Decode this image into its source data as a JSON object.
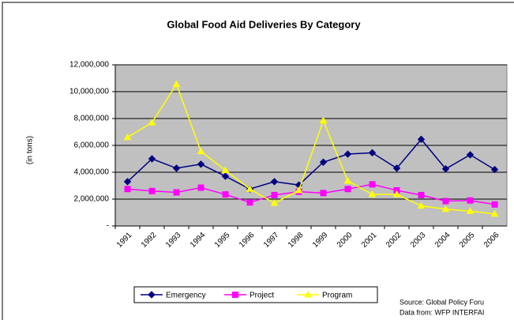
{
  "chart_data": {
    "type": "line",
    "title": "Global Food Aid Deliveries By Category",
    "y_label": "(in tons)",
    "categories": [
      "1991",
      "1992",
      "1993",
      "1994",
      "1995",
      "1996",
      "1997",
      "1998",
      "1999",
      "2000",
      "2001",
      "2002",
      "2003",
      "2004",
      "2005",
      "2006"
    ],
    "series": [
      {
        "name": "Emergency",
        "color": "#000080",
        "marker": "diamond",
        "values": [
          3300000,
          5000000,
          4300000,
          4600000,
          3700000,
          2750000,
          3300000,
          3050000,
          4750000,
          5350000,
          5450000,
          4300000,
          6450000,
          4250000,
          5300000,
          4200000
        ]
      },
      {
        "name": "Project",
        "color": "#ff00ff",
        "marker": "square",
        "values": [
          2750000,
          2600000,
          2500000,
          2850000,
          2350000,
          1750000,
          2300000,
          2550000,
          2450000,
          2750000,
          3100000,
          2650000,
          2300000,
          1850000,
          1900000,
          1600000
        ]
      },
      {
        "name": "Program",
        "color": "#ffff00",
        "marker": "triangle",
        "values": [
          6600000,
          7700000,
          10550000,
          5550000,
          4150000,
          2750000,
          1700000,
          2650000,
          7850000,
          3350000,
          2350000,
          2350000,
          1500000,
          1250000,
          1100000,
          900000
        ]
      }
    ],
    "ylim": [
      0,
      12000000
    ],
    "yticks": [
      {
        "value": 0,
        "label": "-"
      },
      {
        "value": 2000000,
        "label": "2,000,000"
      },
      {
        "value": 4000000,
        "label": "4,000,000"
      },
      {
        "value": 6000000,
        "label": "6,000,000"
      },
      {
        "value": 8000000,
        "label": "8,000,000"
      },
      {
        "value": 10000000,
        "label": "10,000,000"
      },
      {
        "value": 12000000,
        "label": "12,000,000"
      }
    ],
    "grid": true,
    "plot_background": "#c0c0c0",
    "legend": "bottom",
    "notes": [
      "Source: Global Policy Foru",
      "Data from: WFP INTERFAI"
    ]
  }
}
